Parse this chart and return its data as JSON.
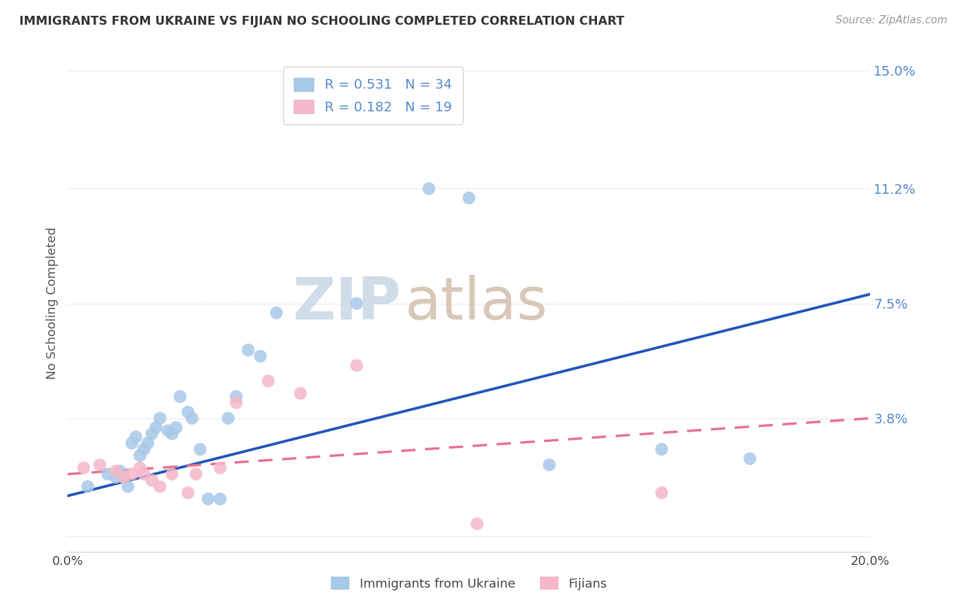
{
  "title": "IMMIGRANTS FROM UKRAINE VS FIJIAN NO SCHOOLING COMPLETED CORRELATION CHART",
  "source": "Source: ZipAtlas.com",
  "ylabel": "No Schooling Completed",
  "yticks": [
    0.0,
    0.038,
    0.075,
    0.112,
    0.15
  ],
  "ytick_labels": [
    "",
    "3.8%",
    "7.5%",
    "11.2%",
    "15.0%"
  ],
  "xlim": [
    0.0,
    0.2
  ],
  "ylim": [
    -0.005,
    0.155
  ],
  "legend_r1": "R = 0.531",
  "legend_n1": "N = 34",
  "legend_r2": "R = 0.182",
  "legend_n2": "N = 19",
  "label1": "Immigrants from Ukraine",
  "label2": "Fijians",
  "color1": "#a8c8e8",
  "color2": "#f5b8c8",
  "trendline1_color": "#2255bb",
  "trendline2_color": "#e87090",
  "watermark_zip": "ZIP",
  "watermark_atlas": "atlas",
  "ukraine_x": [
    0.005,
    0.01,
    0.012,
    0.013,
    0.014,
    0.015,
    0.016,
    0.017,
    0.018,
    0.019,
    0.02,
    0.021,
    0.022,
    0.023,
    0.025,
    0.026,
    0.027,
    0.028,
    0.03,
    0.031,
    0.033,
    0.035,
    0.038,
    0.04,
    0.042,
    0.045,
    0.048,
    0.052,
    0.072,
    0.09,
    0.1,
    0.12,
    0.148,
    0.17
  ],
  "ukraine_y": [
    0.016,
    0.02,
    0.019,
    0.021,
    0.019,
    0.016,
    0.03,
    0.032,
    0.026,
    0.028,
    0.03,
    0.033,
    0.035,
    0.038,
    0.034,
    0.033,
    0.035,
    0.045,
    0.04,
    0.038,
    0.028,
    0.012,
    0.012,
    0.038,
    0.045,
    0.06,
    0.058,
    0.072,
    0.075,
    0.112,
    0.109,
    0.023,
    0.028,
    0.025
  ],
  "fijian_x": [
    0.004,
    0.008,
    0.012,
    0.014,
    0.016,
    0.018,
    0.019,
    0.021,
    0.023,
    0.026,
    0.03,
    0.032,
    0.038,
    0.042,
    0.05,
    0.058,
    0.072,
    0.102,
    0.148
  ],
  "fijian_y": [
    0.022,
    0.023,
    0.021,
    0.019,
    0.02,
    0.022,
    0.02,
    0.018,
    0.016,
    0.02,
    0.014,
    0.02,
    0.022,
    0.043,
    0.05,
    0.046,
    0.055,
    0.004,
    0.014
  ],
  "trend1_x0": 0.0,
  "trend1_y0": 0.013,
  "trend1_x1": 0.2,
  "trend1_y1": 0.078,
  "trend2_x0": 0.0,
  "trend2_y0": 0.02,
  "trend2_x1": 0.2,
  "trend2_y1": 0.038
}
